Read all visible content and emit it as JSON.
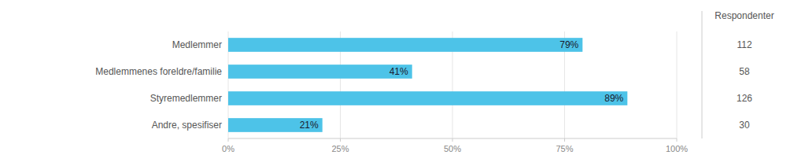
{
  "chart_data": {
    "type": "bar",
    "orientation": "horizontal",
    "categories": [
      "Andre, spesifiser",
      "Styremedlemmer",
      "Medlemmenes foreldre/familie",
      "Medlemmer"
    ],
    "values": [
      21,
      89,
      41,
      79
    ],
    "value_labels": [
      "21%",
      "89%",
      "41%",
      "79%"
    ],
    "data_labels": true,
    "color": "#4DC3E8",
    "xlim": [
      0,
      100
    ],
    "xticks": [
      {
        "value": 0,
        "label": "0%"
      },
      {
        "value": 25,
        "label": "25%"
      },
      {
        "value": 50,
        "label": "50%"
      },
      {
        "value": 75,
        "label": "75%"
      },
      {
        "value": 100,
        "label": "100%"
      }
    ],
    "grid": true,
    "respondents_title": "Respondenter",
    "respondents": [
      30,
      126,
      58,
      112
    ]
  }
}
